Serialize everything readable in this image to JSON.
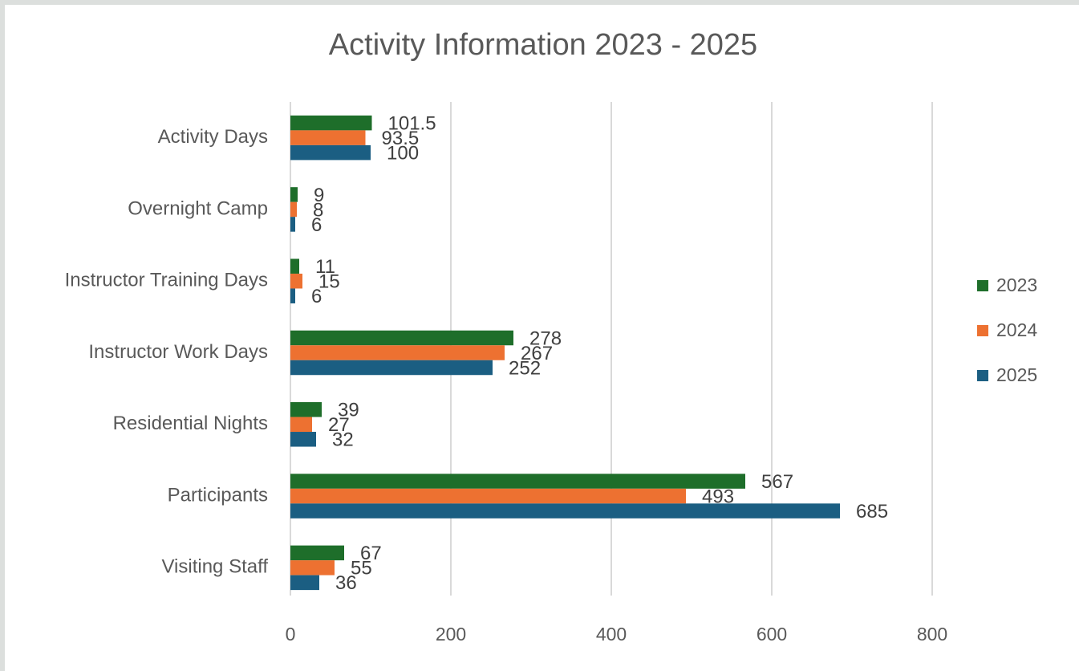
{
  "chart_data": {
    "type": "barh",
    "title": "Activity Information 2023 - 2025",
    "categories": [
      "Activity Days",
      "Overnight Camp",
      "Instructor Training Days",
      "Instructor Work Days",
      "Residential Nights",
      "Participants",
      "Visiting Staff"
    ],
    "series": [
      {
        "name": "2023",
        "color": "#1e6e2a",
        "values": [
          101.5,
          9,
          11,
          278,
          39,
          567,
          67
        ]
      },
      {
        "name": "2024",
        "color": "#ed7131",
        "values": [
          93.5,
          8,
          15,
          267,
          27,
          493,
          55
        ]
      },
      {
        "name": "2025",
        "color": "#1b5e82",
        "values": [
          100,
          6,
          6,
          252,
          32,
          685,
          36
        ]
      }
    ],
    "xlim": [
      0,
      800
    ],
    "xticks": [
      0,
      200,
      400,
      600,
      800
    ],
    "grid": true,
    "legend": "right"
  }
}
